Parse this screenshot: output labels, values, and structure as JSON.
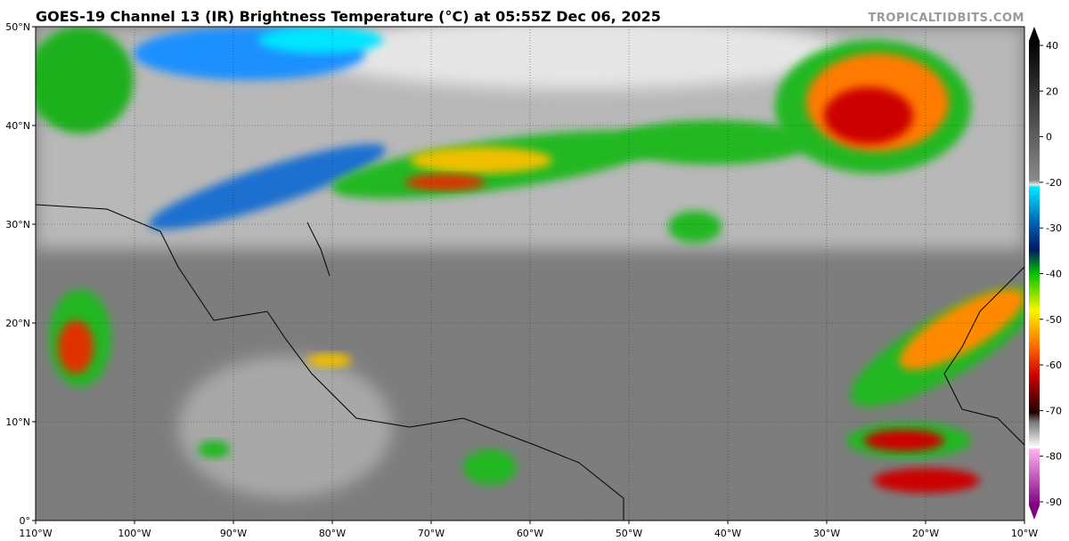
{
  "header": {
    "title": "GOES-19 Channel 13 (IR) Brightness Temperature (°C) at 05:55Z Dec 06, 2025",
    "watermark": "TROPICALTIDBITS.COM"
  },
  "map": {
    "xlim": [
      -110,
      -10
    ],
    "ylim": [
      0,
      50
    ],
    "xticks": [
      {
        "value": -110,
        "label": "110°W"
      },
      {
        "value": -100,
        "label": "100°W"
      },
      {
        "value": -90,
        "label": "90°W"
      },
      {
        "value": -80,
        "label": "80°W"
      },
      {
        "value": -70,
        "label": "70°W"
      },
      {
        "value": -60,
        "label": "60°W"
      },
      {
        "value": -50,
        "label": "50°W"
      },
      {
        "value": -40,
        "label": "40°W"
      },
      {
        "value": -30,
        "label": "30°W"
      },
      {
        "value": -20,
        "label": "20°W"
      },
      {
        "value": -10,
        "label": "10°W"
      }
    ],
    "yticks": [
      {
        "value": 50,
        "label": "50°N"
      },
      {
        "value": 40,
        "label": "40°N"
      },
      {
        "value": 30,
        "label": "30°N"
      },
      {
        "value": 20,
        "label": "20°N"
      },
      {
        "value": 10,
        "label": "10°N"
      },
      {
        "value": 0,
        "label": "0°"
      }
    ]
  },
  "colorbar": {
    "ticks": [
      40,
      20,
      0,
      -20,
      -30,
      -40,
      -50,
      -60,
      -70,
      -80,
      -90
    ]
  }
}
